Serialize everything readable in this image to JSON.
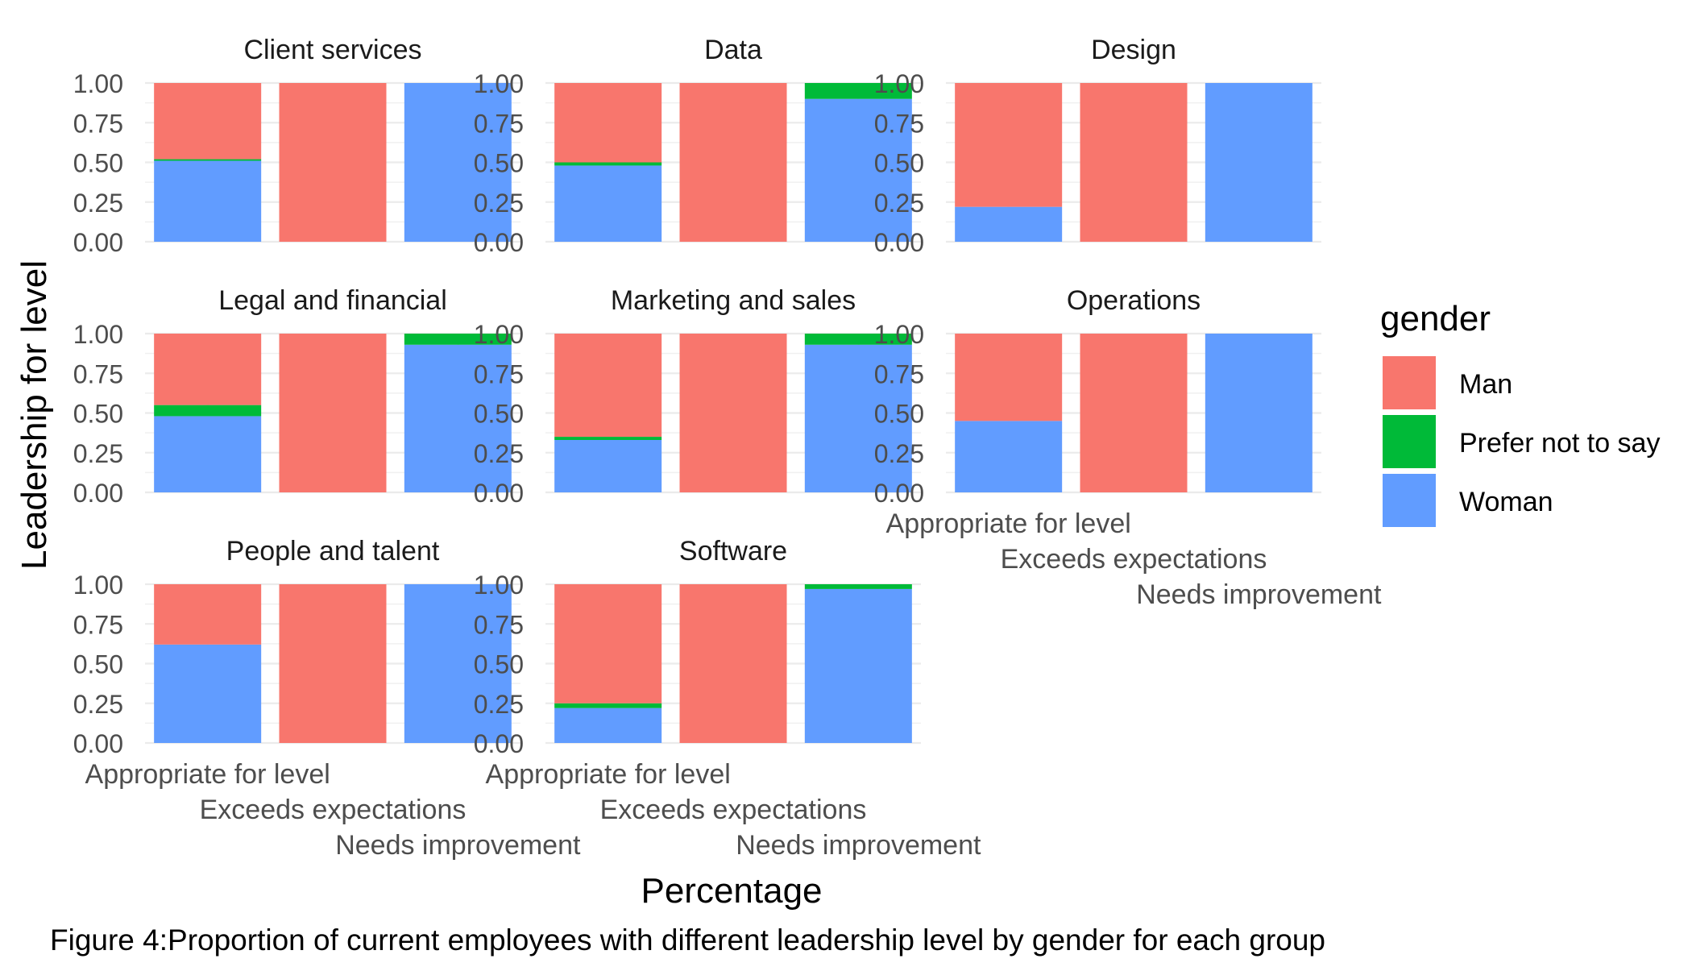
{
  "caption": "Figure 4:Proportion of current employees with different leadership level by gender for each group",
  "chart_data": {
    "type": "bar",
    "stacked": true,
    "faceted": true,
    "xlabel": "Percentage",
    "ylabel": "Leadership for level",
    "categories": [
      "Appropriate for level",
      "Exceeds expectations",
      "Needs improvement"
    ],
    "y_ticks": [
      "0.00",
      "0.25",
      "0.50",
      "0.75",
      "1.00"
    ],
    "ylim": [
      0,
      1
    ],
    "grid": true,
    "legend": {
      "title": "gender",
      "position": "right",
      "entries": [
        {
          "name": "Man",
          "color": "#F8766D"
        },
        {
          "name": "Prefer not to say",
          "color": "#00BA38"
        },
        {
          "name": "Woman",
          "color": "#619CFF"
        }
      ]
    },
    "stack_order_bottom_to_top": [
      "Woman",
      "Prefer not to say",
      "Man"
    ],
    "panels": [
      {
        "title": "Client services",
        "series": [
          {
            "name": "Woman",
            "values": [
              0.51,
              0,
              1
            ]
          },
          {
            "name": "Prefer not to say",
            "values": [
              0.01,
              0,
              0
            ]
          },
          {
            "name": "Man",
            "values": [
              0.48,
              1,
              0
            ]
          }
        ]
      },
      {
        "title": "Data",
        "series": [
          {
            "name": "Woman",
            "values": [
              0.48,
              0,
              0.9
            ]
          },
          {
            "name": "Prefer not to say",
            "values": [
              0.02,
              0,
              0.1
            ]
          },
          {
            "name": "Man",
            "values": [
              0.5,
              1,
              0
            ]
          }
        ]
      },
      {
        "title": "Design",
        "series": [
          {
            "name": "Woman",
            "values": [
              0.22,
              0,
              1
            ]
          },
          {
            "name": "Prefer not to say",
            "values": [
              0,
              0,
              0
            ]
          },
          {
            "name": "Man",
            "values": [
              0.78,
              1,
              0
            ]
          }
        ]
      },
      {
        "title": "Legal and financial",
        "series": [
          {
            "name": "Woman",
            "values": [
              0.48,
              0,
              0.93
            ]
          },
          {
            "name": "Prefer not to say",
            "values": [
              0.07,
              0,
              0.07
            ]
          },
          {
            "name": "Man",
            "values": [
              0.45,
              1,
              0
            ]
          }
        ]
      },
      {
        "title": "Marketing and sales",
        "series": [
          {
            "name": "Woman",
            "values": [
              0.33,
              0,
              0.93
            ]
          },
          {
            "name": "Prefer not to say",
            "values": [
              0.02,
              0,
              0.07
            ]
          },
          {
            "name": "Man",
            "values": [
              0.65,
              1,
              0
            ]
          }
        ]
      },
      {
        "title": "Operations",
        "series": [
          {
            "name": "Woman",
            "values": [
              0.45,
              0,
              1
            ]
          },
          {
            "name": "Prefer not to say",
            "values": [
              0,
              0,
              0
            ]
          },
          {
            "name": "Man",
            "values": [
              0.55,
              1,
              0
            ]
          }
        ]
      },
      {
        "title": "People and talent",
        "series": [
          {
            "name": "Woman",
            "values": [
              0.62,
              0,
              1
            ]
          },
          {
            "name": "Prefer not to say",
            "values": [
              0,
              0,
              0
            ]
          },
          {
            "name": "Man",
            "values": [
              0.38,
              1,
              0
            ]
          }
        ]
      },
      {
        "title": "Software",
        "series": [
          {
            "name": "Woman",
            "values": [
              0.22,
              0,
              0.97
            ]
          },
          {
            "name": "Prefer not to say",
            "values": [
              0.03,
              0,
              0.03
            ]
          },
          {
            "name": "Man",
            "values": [
              0.75,
              1,
              0
            ]
          }
        ]
      }
    ]
  }
}
